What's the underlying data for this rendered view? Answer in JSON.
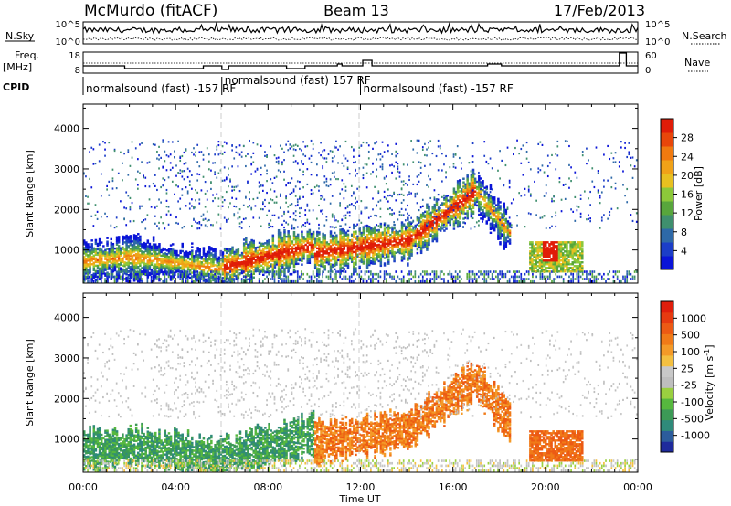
{
  "header": {
    "station": "McMurdo (fitACF)",
    "beam": "Beam 13",
    "date": "17/Feb/2013"
  },
  "top_panels": {
    "nsky_label": "N.Sky",
    "nsearch_label": "N.Search",
    "noise_ticks": [
      "10^5",
      "10^0"
    ],
    "freq_label_line1": "Freq.",
    "freq_label_line2": "[MHz]",
    "freq_ticks": [
      "18",
      "8"
    ],
    "nave_label": "Nave",
    "nave_ticks": [
      "60",
      "0"
    ],
    "cpid_label": "CPID",
    "cpid_segments": [
      {
        "text": "normalsound (fast) -157 RF",
        "start_hour": 0
      },
      {
        "text": "normalsound (fast) 157 RF",
        "start_hour": 6
      },
      {
        "text": "normalsound (fast) -157 RF",
        "start_hour": 12
      }
    ]
  },
  "chart_data": [
    {
      "type": "heatmap",
      "title": "",
      "xlabel": "",
      "ylabel": "Slant Range [km]",
      "xlim": [
        0,
        24
      ],
      "ylim": [
        180,
        4600
      ],
      "yticks": [
        1000,
        2000,
        3000,
        4000
      ],
      "colorbar": {
        "label": "Power [dB]",
        "ticks": [
          "28",
          "24",
          "20",
          "16",
          "12",
          "8",
          "4"
        ],
        "colors": [
          "#0a14d8",
          "#1c3ec8",
          "#2e69a8",
          "#3f8f6e",
          "#58a63c",
          "#8cc83a",
          "#e8c020",
          "#f0a218",
          "#f07a10",
          "#e8460a",
          "#e01c08"
        ]
      }
    },
    {
      "type": "heatmap",
      "title": "",
      "xlabel": "Time UT",
      "ylabel": "Slant Range [km]",
      "xlim": [
        0,
        24
      ],
      "ylim": [
        180,
        4600
      ],
      "yticks": [
        1000,
        2000,
        3000,
        4000
      ],
      "xticks": [
        "00:00",
        "04:00",
        "08:00",
        "12:00",
        "16:00",
        "20:00",
        "00:00"
      ],
      "colorbar": {
        "label": "Velocity [m s",
        "label_exp": "-1",
        "ticks": [
          "1000",
          "500",
          "100",
          "25",
          "-25",
          "-100",
          "-500",
          "-1000"
        ],
        "colors": [
          "#1e2a9c",
          "#2c5c9c",
          "#2f8a7a",
          "#3c9a56",
          "#56b83e",
          "#9ad040",
          "#bebebe",
          "#c8c8c8",
          "#f4c040",
          "#f49a28",
          "#f07a18",
          "#ec5a14",
          "#e63a10",
          "#e01e0c"
        ]
      }
    }
  ]
}
